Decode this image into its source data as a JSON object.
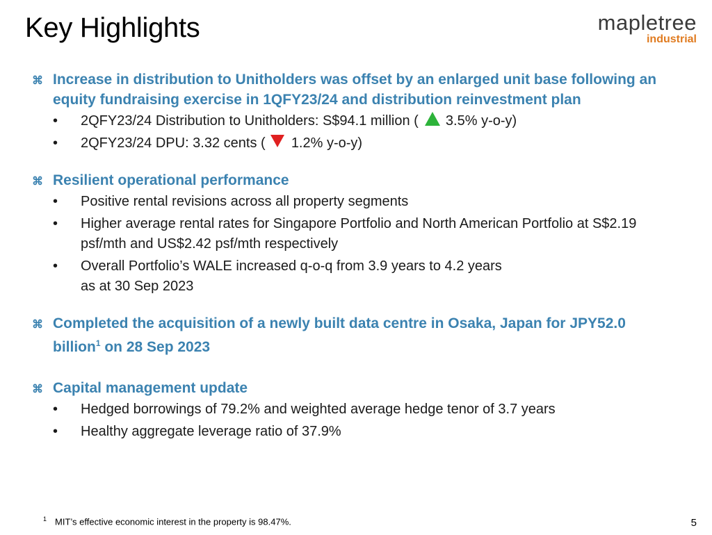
{
  "page": {
    "title": "Key Highlights",
    "page_number": "5"
  },
  "logo": {
    "main": "mapletree",
    "sub": "industrial"
  },
  "sections": [
    {
      "heading_icon": "star-bullet-icon",
      "heading": "Increase in distribution to Unitholders was offset by an enlarged unit base following an equity fundraising exercise in 1QFY23/24 and distribution reinvestment plan",
      "items": [
        {
          "pre": "2QFY23/24 Distribution to Unitholders: S$94.1 million (",
          "trend": "up",
          "post": "3.5% y-o-y)"
        },
        {
          "pre": "2QFY23/24 DPU: 3.32 cents (",
          "trend": "down",
          "post": "1.2% y-o-y)"
        }
      ]
    },
    {
      "heading_icon": "star-bullet-icon",
      "heading": "Resilient operational performance",
      "items": [
        {
          "text": "Positive rental revisions across all property segments"
        },
        {
          "text": "Higher average rental rates for Singapore Portfolio and North American Portfolio at S$2.19 psf/mth and US$2.42 psf/mth respectively"
        },
        {
          "line1": "Overall Portfolio’s WALE increased q-o-q from 3.9 years to 4.2 years",
          "line2": "as at 30 Sep 2023"
        }
      ]
    },
    {
      "heading_icon": "star-bullet-icon",
      "heading_part1": "Completed the acquisition of a newly built data centre in Osaka, Japan for JPY52.0 billion",
      "heading_sup": "1",
      "heading_part2": " on 28 Sep 2023"
    },
    {
      "heading_icon": "star-bullet-icon",
      "heading": "Capital management update",
      "items": [
        {
          "text": "Hedged borrowings of 79.2% and weighted average hedge tenor of 3.7 years"
        },
        {
          "text": "Healthy aggregate leverage ratio of 37.9%"
        }
      ]
    }
  ],
  "bullet_char": "•",
  "heading_bullet_char": "⌘",
  "footnote": {
    "marker": "1",
    "text": "MIT’s effective economic interest in the property is 98.47%."
  },
  "colors": {
    "heading": "#3b82b0",
    "up": "#2db33a",
    "down": "#e02020",
    "logo_sub": "#e07b20"
  }
}
